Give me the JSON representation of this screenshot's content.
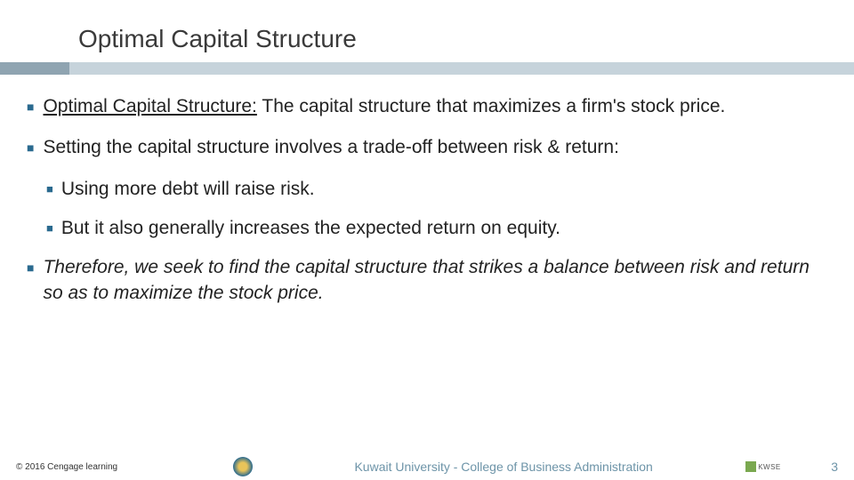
{
  "title": "Optimal Capital Structure",
  "bullets": {
    "b1_term": "Optimal Capital Structure:",
    "b1_rest": " The capital structure that maximizes a firm's stock price.",
    "b2": "Setting the capital structure involves a trade-off between risk & return:",
    "b2a": "Using more debt will raise risk.",
    "b2b": "But it also generally increases the expected return on equity.",
    "b3": "Therefore, we seek to find the capital structure that strikes a balance between risk and return so as to maximize the stock price."
  },
  "footer": {
    "copyright": "© 2016 Cengage learning",
    "center": "Kuwait University - College of Business Administration",
    "page": "3"
  },
  "colors": {
    "accent": "#2a6a8f",
    "underline_dark": "#8fa4b1",
    "underline_light": "#c6d3db",
    "footer_text": "#6d94a8"
  }
}
